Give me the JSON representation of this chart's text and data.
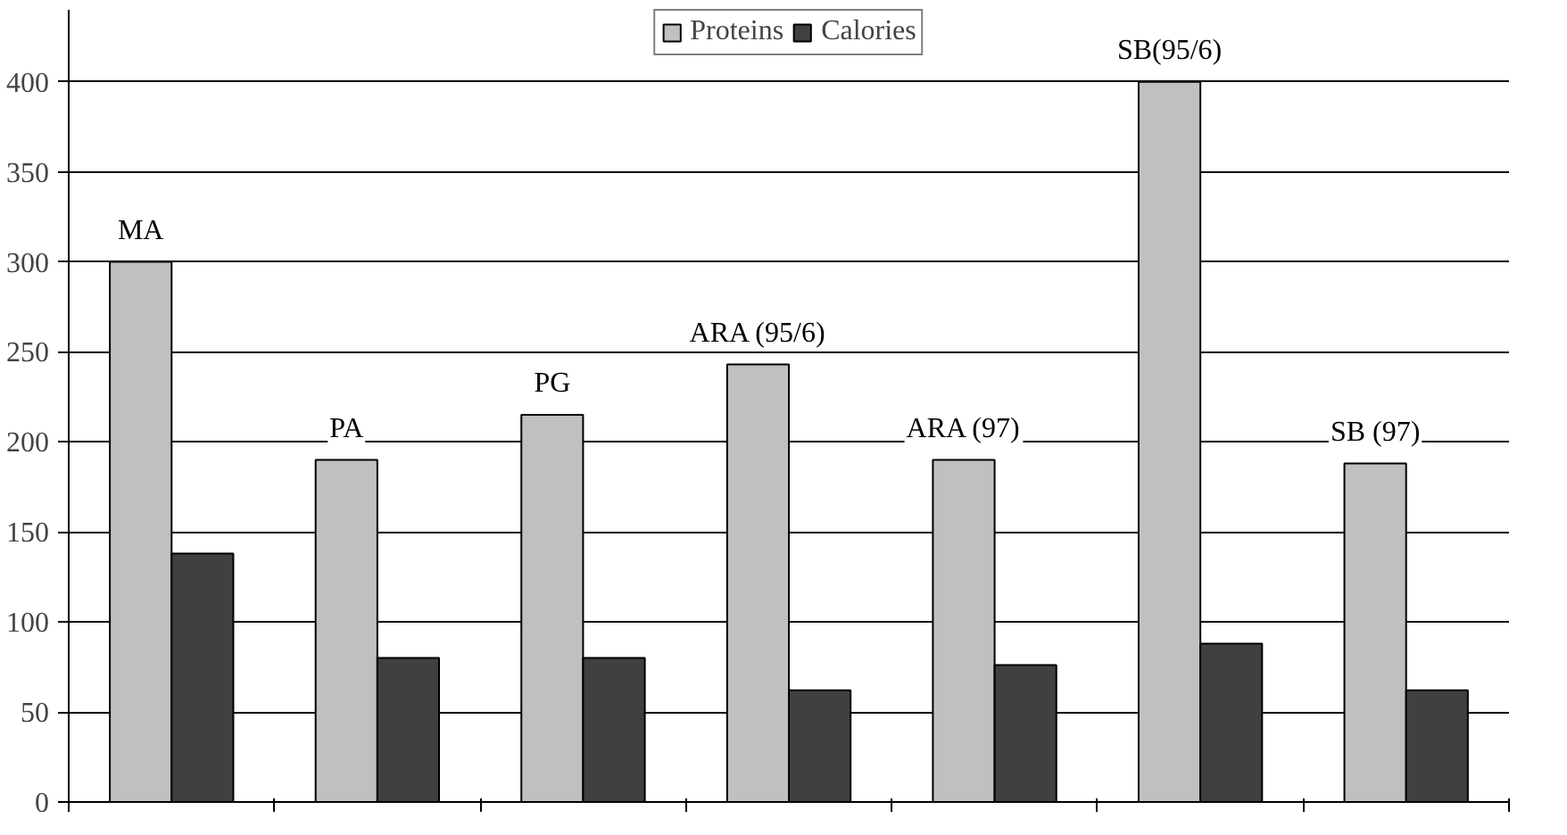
{
  "chart_data": {
    "type": "bar",
    "categories": [
      "MA",
      "PA",
      "PG",
      "ARA (95/6)",
      "ARA (97)",
      "SB(95/6)",
      "SB (97)"
    ],
    "series": [
      {
        "name": "Proteins",
        "color": "#c0c0c0",
        "values": [
          300,
          190,
          215,
          243,
          190,
          400,
          188
        ]
      },
      {
        "name": "Calories",
        "color": "#404040",
        "values": [
          138,
          80,
          80,
          62,
          76,
          88,
          62
        ]
      }
    ],
    "ylim": [
      0,
      440
    ],
    "yticks": [
      0,
      50,
      100,
      150,
      200,
      250,
      300,
      350,
      400
    ],
    "grid": "y",
    "legend": "top"
  }
}
